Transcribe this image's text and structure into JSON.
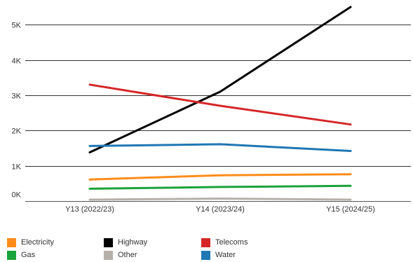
{
  "chart_data": {
    "type": "line",
    "categories": [
      "Y13 (2022/23)",
      "Y14 (2023/24)",
      "Y15 (2024/25)"
    ],
    "ylim": [
      0,
      5500
    ],
    "yticks": [
      0,
      1000,
      2000,
      3000,
      4000,
      5000
    ],
    "ytick_labels": [
      "0K",
      "1K",
      "2K",
      "3K",
      "4K",
      "5K"
    ],
    "grid": true,
    "legend_position": "bottom",
    "series": [
      {
        "name": "Electricity",
        "color": "#ff8c1a",
        "values": [
          610,
          730,
          760
        ]
      },
      {
        "name": "Gas",
        "color": "#1aa33a",
        "values": [
          350,
          400,
          430
        ]
      },
      {
        "name": "Highway",
        "color": "#000000",
        "values": [
          1380,
          3100,
          5500
        ]
      },
      {
        "name": "Other",
        "color": "#b5b0aa",
        "values": [
          40,
          70,
          40
        ]
      },
      {
        "name": "Telecoms",
        "color": "#d62728",
        "values": [
          3300,
          2700,
          2170
        ]
      },
      {
        "name": "Water",
        "color": "#1f77b4",
        "values": [
          1560,
          1610,
          1420
        ]
      }
    ]
  }
}
